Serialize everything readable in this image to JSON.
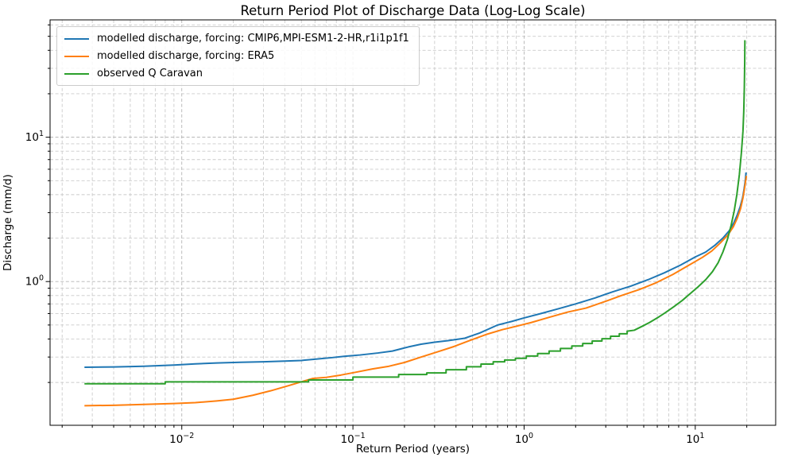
{
  "chart_data": {
    "type": "line",
    "title": "Return Period Plot of Discharge Data (Log-Log Scale)",
    "xlabel": "Return Period (years)",
    "ylabel": "Discharge (mm/d)",
    "x_scale": "log",
    "y_scale": "log",
    "xlim": [
      0.0017,
      29.5
    ],
    "ylim": [
      0.101,
      65
    ],
    "grid": {
      "which": "both",
      "style": "dashed",
      "major_color": "#b4b4b4",
      "minor_color": "#cbcbcb"
    },
    "legend_position": "upper left",
    "x_ticks": [
      {
        "v": 0.01,
        "base": "10",
        "exp": "−2"
      },
      {
        "v": 0.1,
        "base": "10",
        "exp": "−1"
      },
      {
        "v": 1,
        "base": "10",
        "exp": "0"
      },
      {
        "v": 10,
        "base": "10",
        "exp": "1"
      }
    ],
    "y_ticks": [
      {
        "v": 1,
        "base": "10",
        "exp": "0"
      },
      {
        "v": 10,
        "base": "10",
        "exp": "1"
      }
    ],
    "series": [
      {
        "name": "modelled discharge, forcing: CMIP6,MPI-ESM1-2-HR,r1i1p1f1",
        "key": "cmip6-mpi-esm1-2-hr",
        "color": "#1f77b4",
        "points": [
          [
            0.0027,
            0.255
          ],
          [
            0.004,
            0.256
          ],
          [
            0.006,
            0.259
          ],
          [
            0.009,
            0.264
          ],
          [
            0.012,
            0.269
          ],
          [
            0.016,
            0.273
          ],
          [
            0.022,
            0.276
          ],
          [
            0.03,
            0.278
          ],
          [
            0.04,
            0.281
          ],
          [
            0.05,
            0.284
          ],
          [
            0.06,
            0.29
          ],
          [
            0.075,
            0.297
          ],
          [
            0.09,
            0.304
          ],
          [
            0.11,
            0.31
          ],
          [
            0.14,
            0.32
          ],
          [
            0.17,
            0.33
          ],
          [
            0.21,
            0.352
          ],
          [
            0.25,
            0.368
          ],
          [
            0.3,
            0.38
          ],
          [
            0.36,
            0.39
          ],
          [
            0.45,
            0.405
          ],
          [
            0.55,
            0.44
          ],
          [
            0.7,
            0.5
          ],
          [
            0.85,
            0.53
          ],
          [
            1.0,
            0.56
          ],
          [
            1.25,
            0.6
          ],
          [
            1.6,
            0.65
          ],
          [
            2.0,
            0.7
          ],
          [
            2.6,
            0.77
          ],
          [
            3.3,
            0.85
          ],
          [
            4.2,
            0.93
          ],
          [
            5.3,
            1.03
          ],
          [
            6.6,
            1.15
          ],
          [
            8.2,
            1.3
          ],
          [
            10,
            1.48
          ],
          [
            11.5,
            1.6
          ],
          [
            13,
            1.78
          ],
          [
            14.5,
            2.0
          ],
          [
            15.8,
            2.25
          ],
          [
            16.8,
            2.55
          ],
          [
            17.6,
            2.9
          ],
          [
            18.3,
            3.3
          ],
          [
            18.9,
            3.8
          ],
          [
            19.3,
            4.4
          ],
          [
            19.6,
            5.0
          ],
          [
            19.8,
            5.7
          ]
        ]
      },
      {
        "name": "modelled discharge, forcing: ERA5",
        "key": "era5",
        "color": "#ff7f0e",
        "points": [
          [
            0.0027,
            0.138
          ],
          [
            0.004,
            0.139
          ],
          [
            0.006,
            0.141
          ],
          [
            0.009,
            0.143
          ],
          [
            0.012,
            0.145
          ],
          [
            0.016,
            0.149
          ],
          [
            0.02,
            0.153
          ],
          [
            0.026,
            0.163
          ],
          [
            0.033,
            0.175
          ],
          [
            0.042,
            0.19
          ],
          [
            0.05,
            0.202
          ],
          [
            0.058,
            0.213
          ],
          [
            0.07,
            0.217
          ],
          [
            0.085,
            0.225
          ],
          [
            0.105,
            0.236
          ],
          [
            0.13,
            0.248
          ],
          [
            0.16,
            0.258
          ],
          [
            0.2,
            0.275
          ],
          [
            0.25,
            0.3
          ],
          [
            0.31,
            0.325
          ],
          [
            0.39,
            0.355
          ],
          [
            0.48,
            0.39
          ],
          [
            0.6,
            0.43
          ],
          [
            0.75,
            0.465
          ],
          [
            0.9,
            0.49
          ],
          [
            1.1,
            0.52
          ],
          [
            1.4,
            0.565
          ],
          [
            1.8,
            0.615
          ],
          [
            2.3,
            0.655
          ],
          [
            2.9,
            0.72
          ],
          [
            3.7,
            0.8
          ],
          [
            4.7,
            0.88
          ],
          [
            5.9,
            0.98
          ],
          [
            7.4,
            1.12
          ],
          [
            9.2,
            1.3
          ],
          [
            11,
            1.47
          ],
          [
            12.5,
            1.63
          ],
          [
            14,
            1.85
          ],
          [
            15.5,
            2.1
          ],
          [
            16.7,
            2.4
          ],
          [
            17.6,
            2.75
          ],
          [
            18.4,
            3.2
          ],
          [
            19.0,
            3.8
          ],
          [
            19.4,
            4.4
          ],
          [
            19.7,
            5.0
          ],
          [
            19.9,
            5.4
          ]
        ]
      },
      {
        "name": "observed Q Caravan",
        "key": "observed-q-caravan",
        "color": "#2ca02c",
        "points": [
          [
            0.0027,
            0.196
          ],
          [
            0.008,
            0.196
          ],
          [
            0.008,
            0.202
          ],
          [
            0.055,
            0.202
          ],
          [
            0.055,
            0.208
          ],
          [
            0.1,
            0.208
          ],
          [
            0.1,
            0.218
          ],
          [
            0.185,
            0.218
          ],
          [
            0.185,
            0.227
          ],
          [
            0.27,
            0.227
          ],
          [
            0.27,
            0.233
          ],
          [
            0.35,
            0.233
          ],
          [
            0.35,
            0.245
          ],
          [
            0.46,
            0.245
          ],
          [
            0.46,
            0.257
          ],
          [
            0.56,
            0.257
          ],
          [
            0.56,
            0.268
          ],
          [
            0.66,
            0.268
          ],
          [
            0.66,
            0.278
          ],
          [
            0.77,
            0.278
          ],
          [
            0.77,
            0.286
          ],
          [
            0.89,
            0.286
          ],
          [
            0.89,
            0.294
          ],
          [
            1.03,
            0.294
          ],
          [
            1.03,
            0.305
          ],
          [
            1.2,
            0.305
          ],
          [
            1.2,
            0.317
          ],
          [
            1.4,
            0.317
          ],
          [
            1.4,
            0.33
          ],
          [
            1.63,
            0.33
          ],
          [
            1.63,
            0.344
          ],
          [
            1.9,
            0.344
          ],
          [
            1.9,
            0.358
          ],
          [
            2.2,
            0.358
          ],
          [
            2.2,
            0.372
          ],
          [
            2.5,
            0.372
          ],
          [
            2.5,
            0.387
          ],
          [
            2.85,
            0.387
          ],
          [
            2.85,
            0.402
          ],
          [
            3.2,
            0.402
          ],
          [
            3.2,
            0.418
          ],
          [
            3.6,
            0.418
          ],
          [
            3.6,
            0.435
          ],
          [
            4.0,
            0.435
          ],
          [
            4.0,
            0.453
          ],
          [
            4.4,
            0.46
          ],
          [
            4.9,
            0.49
          ],
          [
            5.4,
            0.52
          ],
          [
            6.0,
            0.56
          ],
          [
            6.7,
            0.61
          ],
          [
            7.5,
            0.67
          ],
          [
            8.4,
            0.74
          ],
          [
            9.4,
            0.83
          ],
          [
            10.4,
            0.92
          ],
          [
            11.5,
            1.03
          ],
          [
            12.6,
            1.17
          ],
          [
            13.6,
            1.35
          ],
          [
            14.5,
            1.6
          ],
          [
            15.4,
            1.95
          ],
          [
            16.2,
            2.45
          ],
          [
            16.9,
            3.1
          ],
          [
            17.5,
            4.0
          ],
          [
            18.1,
            5.5
          ],
          [
            18.6,
            7.8
          ],
          [
            19.0,
            11
          ],
          [
            19.2,
            15
          ],
          [
            19.35,
            22
          ],
          [
            19.45,
            33
          ],
          [
            19.5,
            47
          ]
        ]
      }
    ]
  }
}
